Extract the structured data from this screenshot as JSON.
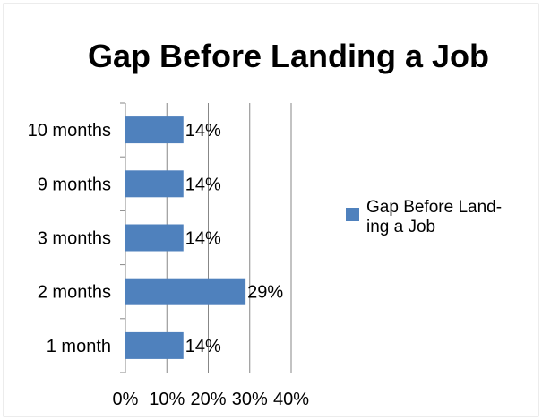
{
  "chart_data": {
    "type": "bar",
    "orientation": "horizontal",
    "title": "Gap Before Landing a Job",
    "categories": [
      "10 months",
      "9 months",
      "3 months",
      "2 months",
      "1 month"
    ],
    "series": [
      {
        "name": "Gap Before Landing a Job",
        "values": [
          14,
          14,
          14,
          29,
          14
        ],
        "data_labels": [
          "14%",
          "14%",
          "14%",
          "29%",
          "14%"
        ]
      }
    ],
    "x_ticks": [
      "0%",
      "10%",
      "20%",
      "30%",
      "40%"
    ],
    "xlim": [
      0,
      40
    ],
    "grid": "vertical major gridlines",
    "legend": {
      "position": "right",
      "label_lines": [
        "Gap Before Land-",
        "ing a Job"
      ]
    },
    "colors": {
      "bar": "#4f81bd",
      "grid": "#878787",
      "border": "#d9d9d9"
    }
  }
}
